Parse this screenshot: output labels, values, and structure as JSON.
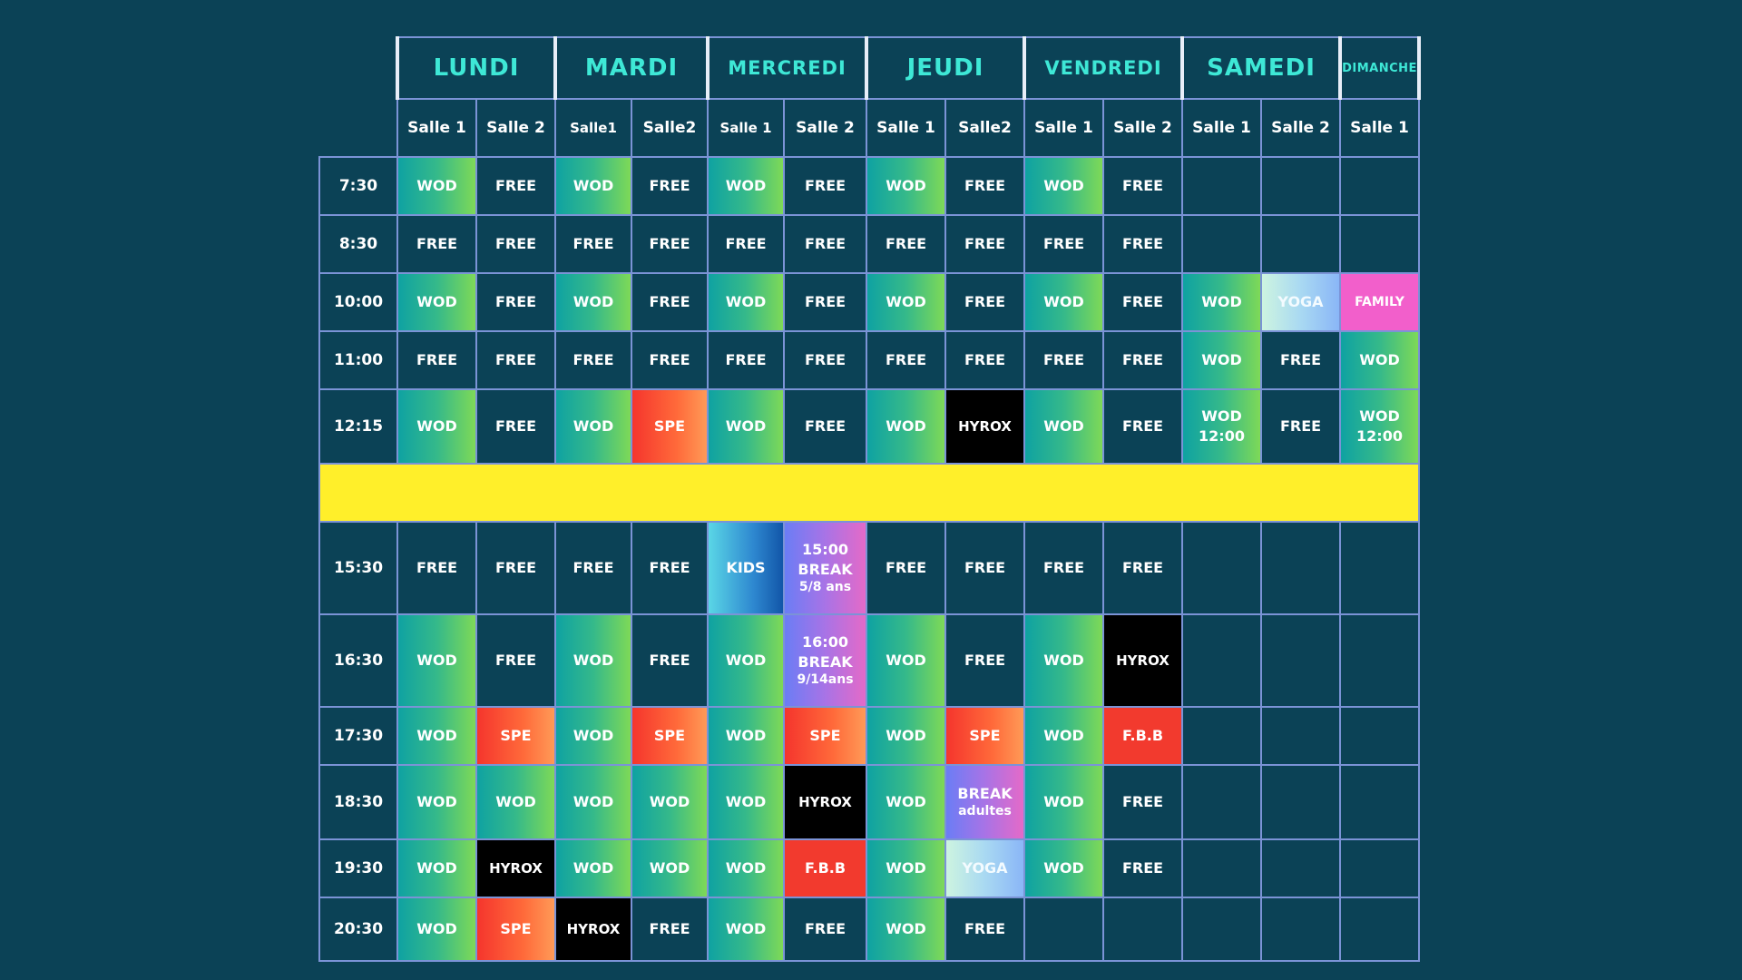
{
  "days": [
    {
      "label": "LUNDI",
      "span": 2
    },
    {
      "label": "MARDI",
      "span": 2
    },
    {
      "label": "MERCREDI",
      "span": 2
    },
    {
      "label": "JEUDI",
      "span": 2
    },
    {
      "label": "VENDREDI",
      "span": 2
    },
    {
      "label": "SAMEDI",
      "span": 2
    },
    {
      "label": "DIMANCHE",
      "span": 1
    }
  ],
  "rooms": [
    "Salle 1",
    "Salle 2",
    "Salle1",
    "Salle2",
    "Salle 1",
    "Salle 2",
    "Salle 1",
    "Salle2",
    "Salle 1",
    "Salle 2",
    "Salle 1",
    "Salle 2",
    "Salle 1"
  ],
  "rows": [
    {
      "time": "7:30",
      "cells": [
        "WOD",
        "FREE",
        "WOD",
        "FREE",
        "WOD",
        "FREE",
        "WOD",
        "FREE",
        "WOD",
        "FREE",
        "",
        "",
        ""
      ]
    },
    {
      "time": "8:30",
      "cells": [
        "FREE",
        "FREE",
        "FREE",
        "FREE",
        "FREE",
        "FREE",
        "FREE",
        "FREE",
        "FREE",
        "FREE",
        "",
        "",
        ""
      ]
    },
    {
      "time": "10:00",
      "cells": [
        "WOD",
        "FREE",
        "WOD",
        "FREE",
        "WOD",
        "FREE",
        "WOD",
        "FREE",
        "WOD",
        "FREE",
        "WOD",
        "YOGA",
        "FAMILY"
      ]
    },
    {
      "time": "11:00",
      "cells": [
        "FREE",
        "FREE",
        "FREE",
        "FREE",
        "FREE",
        "FREE",
        "FREE",
        "FREE",
        "FREE",
        "FREE",
        "WOD",
        "FREE",
        "WOD"
      ]
    },
    {
      "time": "12:15",
      "cells": [
        "WOD",
        "FREE",
        "WOD",
        "SPE",
        "WOD",
        "FREE",
        "WOD",
        "HYROX",
        "WOD",
        "FREE",
        "WOD 12:00",
        "FREE",
        "WOD 12:00"
      ]
    },
    {
      "time": "15:30",
      "cells": [
        "FREE",
        "FREE",
        "FREE",
        "FREE",
        "KIDS",
        "15:00 BREAK 5/8 ans",
        "FREE",
        "FREE",
        "FREE",
        "FREE",
        "",
        "",
        ""
      ]
    },
    {
      "time": "16:30",
      "cells": [
        "WOD",
        "FREE",
        "WOD",
        "FREE",
        "WOD",
        "16:00 BREAK 9/14ans",
        "WOD",
        "FREE",
        "WOD",
        "HYROX",
        "",
        "",
        ""
      ]
    },
    {
      "time": "17:30",
      "cells": [
        "WOD",
        "SPE",
        "WOD",
        "SPE",
        "WOD",
        "SPE",
        "WOD",
        "SPE",
        "WOD",
        "F.B.B",
        "",
        "",
        ""
      ]
    },
    {
      "time": "18:30",
      "cells": [
        "WOD",
        "WOD",
        "WOD",
        "WOD",
        "WOD",
        "HYROX",
        "WOD",
        "BREAK adultes",
        "WOD",
        "FREE",
        "",
        "",
        ""
      ]
    },
    {
      "time": "19:30",
      "cells": [
        "WOD",
        "HYROX",
        "WOD",
        "WOD",
        "WOD",
        "F.B.B",
        "WOD",
        "YOGA",
        "WOD",
        "FREE",
        "",
        "",
        ""
      ]
    },
    {
      "time": "20:30",
      "cells": [
        "WOD",
        "SPE",
        "HYROX",
        "FREE",
        "WOD",
        "FREE",
        "WOD",
        "FREE",
        "",
        "",
        "",
        "",
        ""
      ]
    }
  ],
  "colors": {
    "background": "#0b4256",
    "grid": "#7b93d6",
    "day_header": "#3ee8d6",
    "break_band": "#ffef2a",
    "wod": "#35b98a",
    "spe": "#ff6a3a",
    "hyrox": "#000000",
    "family": "#f25fcb",
    "kids": "#2e88d0",
    "break": "#a873e6",
    "fbb": "#f23a2e",
    "yoga": "#a9d9f2"
  }
}
